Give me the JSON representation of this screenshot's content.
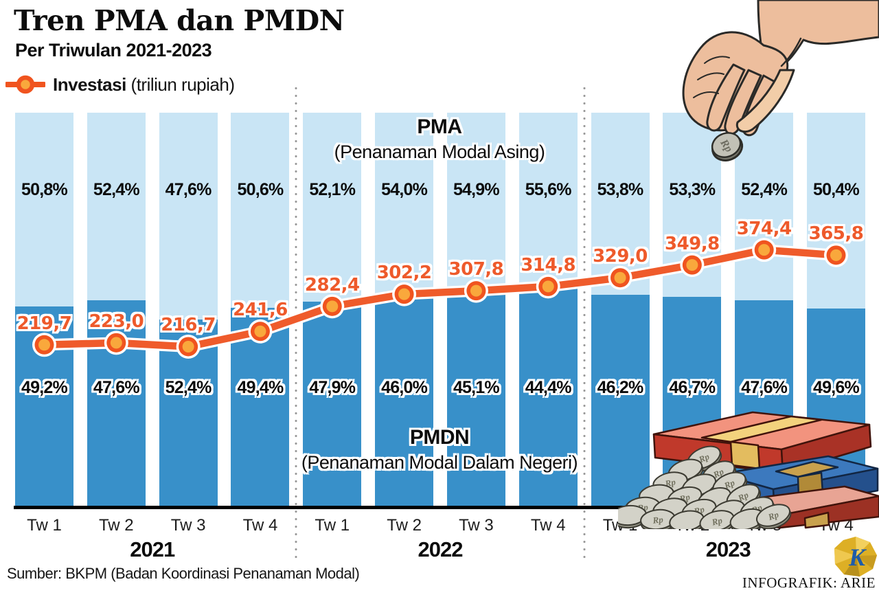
{
  "header": {
    "title": "Tren PMA dan PMDN",
    "subtitle": "Per Triwulan 2021-2023",
    "legend_label": "Investasi",
    "legend_unit": "(triliun rupiah)"
  },
  "pma_heading": {
    "abbr": "PMA",
    "full": "(Penanaman Modal Asing)"
  },
  "pmdn_heading": {
    "abbr": "PMDN",
    "full": "(Penanaman Modal Dalam Negeri)"
  },
  "footer": {
    "source": "Sumber: BKPM (Badan Koordinasi Penanaman Modal)",
    "credit": "INFOGRAFIK: ARIE",
    "logo_letter": "K"
  },
  "colors": {
    "bar_light": "#C9E5F5",
    "bar_dark": "#3890C9",
    "line": "#EF5B2B",
    "line_ring": "#F0541F",
    "marker_fill": "#F9A83C",
    "value_label": "#EE5A2B",
    "baseline": "#000000",
    "separator_dots": "#9b9b9b"
  },
  "chart_data": {
    "type": "bar",
    "subtype": "stacked-percent-bars-with-line-overlay",
    "title": "Tren PMA dan PMDN",
    "subtitle": "Per Triwulan 2021-2023",
    "line_series_name": "Investasi",
    "unit": "triliun rupiah",
    "grid": false,
    "legend_position": "top-left",
    "years": [
      "2021",
      "2022",
      "2023"
    ],
    "quarters": [
      "Tw 1",
      "Tw 2",
      "Tw 3",
      "Tw 4"
    ],
    "bars": [
      {
        "year": "2021",
        "quarter": "Tw 1",
        "pma_pct": 50.8,
        "pma_label": "50,8%",
        "pmdn_pct": 49.2,
        "pmdn_label": "49,2%",
        "investasi": 219.7,
        "investasi_label": "219,7"
      },
      {
        "year": "2021",
        "quarter": "Tw 2",
        "pma_pct": 52.4,
        "pma_label": "52,4%",
        "pmdn_pct": 47.6,
        "pmdn_label": "47,6%",
        "investasi": 223.0,
        "investasi_label": "223,0"
      },
      {
        "year": "2021",
        "quarter": "Tw 3",
        "pma_pct": 47.6,
        "pma_label": "47,6%",
        "pmdn_pct": 52.4,
        "pmdn_label": "52,4%",
        "investasi": 216.7,
        "investasi_label": "216,7"
      },
      {
        "year": "2021",
        "quarter": "Tw 4",
        "pma_pct": 50.6,
        "pma_label": "50,6%",
        "pmdn_pct": 49.4,
        "pmdn_label": "49,4%",
        "investasi": 241.6,
        "investasi_label": "241,6"
      },
      {
        "year": "2022",
        "quarter": "Tw 1",
        "pma_pct": 52.1,
        "pma_label": "52,1%",
        "pmdn_pct": 47.9,
        "pmdn_label": "47,9%",
        "investasi": 282.4,
        "investasi_label": "282,4"
      },
      {
        "year": "2022",
        "quarter": "Tw 2",
        "pma_pct": 54.0,
        "pma_label": "54,0%",
        "pmdn_pct": 46.0,
        "pmdn_label": "46,0%",
        "investasi": 302.2,
        "investasi_label": "302,2"
      },
      {
        "year": "2022",
        "quarter": "Tw 3",
        "pma_pct": 54.9,
        "pma_label": "54,9%",
        "pmdn_pct": 45.1,
        "pmdn_label": "45,1%",
        "investasi": 307.8,
        "investasi_label": "307,8"
      },
      {
        "year": "2022",
        "quarter": "Tw 4",
        "pma_pct": 55.6,
        "pma_label": "55,6%",
        "pmdn_pct": 44.4,
        "pmdn_label": "44,4%",
        "investasi": 314.8,
        "investasi_label": "314,8"
      },
      {
        "year": "2023",
        "quarter": "Tw 1",
        "pma_pct": 53.8,
        "pma_label": "53,8%",
        "pmdn_pct": 46.2,
        "pmdn_label": "46,2%",
        "investasi": 329.0,
        "investasi_label": "329,0"
      },
      {
        "year": "2023",
        "quarter": "Tw 2",
        "pma_pct": 53.3,
        "pma_label": "53,3%",
        "pmdn_pct": 46.7,
        "pmdn_label": "46,7%",
        "investasi": 349.8,
        "investasi_label": "349,8"
      },
      {
        "year": "2023",
        "quarter": "Tw 3",
        "pma_pct": 52.4,
        "pma_label": "52,4%",
        "pmdn_pct": 47.6,
        "pmdn_label": "47,6%",
        "investasi": 374.4,
        "investasi_label": "374,4"
      },
      {
        "year": "2023",
        "quarter": "Tw 4",
        "pma_pct": 50.4,
        "pma_label": "50,4%",
        "pmdn_pct": 49.6,
        "pmdn_label": "49,6%",
        "investasi": 365.8,
        "investasi_label": "365,8"
      }
    ]
  }
}
